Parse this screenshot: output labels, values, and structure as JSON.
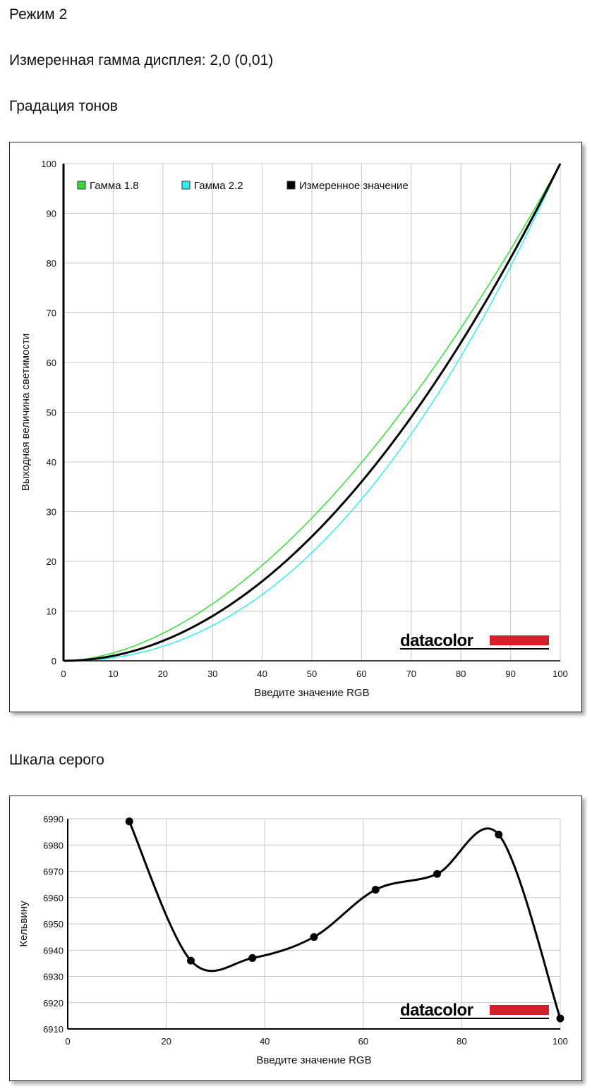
{
  "page": {
    "mode_label": "Режим 2",
    "gamma_label": "Измеренная гамма дисплея: 2,0 (0,01)",
    "tone_section_title": "Градация тонов",
    "gray_section_title": "Шкала серого",
    "brand": "datacolor"
  },
  "colors": {
    "grid": "#c8c8c8",
    "green": "#33dd33",
    "cyan": "#33eeee",
    "black": "#000000",
    "brand_red": "#d3202a"
  },
  "chart_data": [
    {
      "type": "line",
      "title": "",
      "xlabel": "Введите значение RGB",
      "ylabel": "Выходная величина светимости",
      "xlim": [
        0,
        100
      ],
      "ylim": [
        0,
        100
      ],
      "xticks": [
        0,
        10,
        20,
        30,
        40,
        50,
        60,
        70,
        80,
        90,
        100
      ],
      "yticks": [
        0,
        10,
        20,
        30,
        40,
        50,
        60,
        70,
        80,
        90,
        100
      ],
      "grid": true,
      "legend_position": "top-left",
      "series": [
        {
          "name": "Гамма 1.8",
          "color": "#33dd33",
          "gamma": 1.8,
          "x": [
            0,
            10,
            20,
            30,
            40,
            50,
            60,
            70,
            80,
            90,
            100
          ],
          "y": [
            0,
            1.6,
            5.5,
            11.5,
            19.2,
            28.7,
            39.9,
            52.6,
            66.9,
            82.7,
            100
          ]
        },
        {
          "name": "Гамма 2.2",
          "color": "#33eeee",
          "gamma": 2.2,
          "x": [
            0,
            10,
            20,
            30,
            40,
            50,
            60,
            70,
            80,
            90,
            100
          ],
          "y": [
            0,
            0.6,
            2.9,
            7.1,
            13.3,
            21.8,
            32.5,
            45.6,
            61.2,
            79.3,
            100
          ]
        },
        {
          "name": "Измеренное значение",
          "color": "#000000",
          "gamma": 2.0,
          "x": [
            0,
            10,
            20,
            30,
            40,
            50,
            60,
            70,
            80,
            90,
            100
          ],
          "y": [
            0,
            1.0,
            4.0,
            9.0,
            16.0,
            25.0,
            36.0,
            49.0,
            64.0,
            81.0,
            100
          ]
        }
      ]
    },
    {
      "type": "line",
      "title": "",
      "xlabel": "Введите значение RGB",
      "ylabel": "Кельвину",
      "xlim": [
        0,
        100
      ],
      "ylim": [
        6910,
        6990
      ],
      "xticks": [
        0,
        20,
        40,
        60,
        80,
        100
      ],
      "yticks": [
        6910,
        6920,
        6930,
        6940,
        6950,
        6960,
        6970,
        6980,
        6990
      ],
      "grid": true,
      "series": [
        {
          "color": "#000000",
          "x": [
            12.5,
            25,
            37.5,
            50,
            62.5,
            75,
            87.5,
            100
          ],
          "y": [
            6989,
            6936,
            6937,
            6945,
            6963,
            6969,
            6984,
            6914
          ]
        }
      ]
    }
  ]
}
